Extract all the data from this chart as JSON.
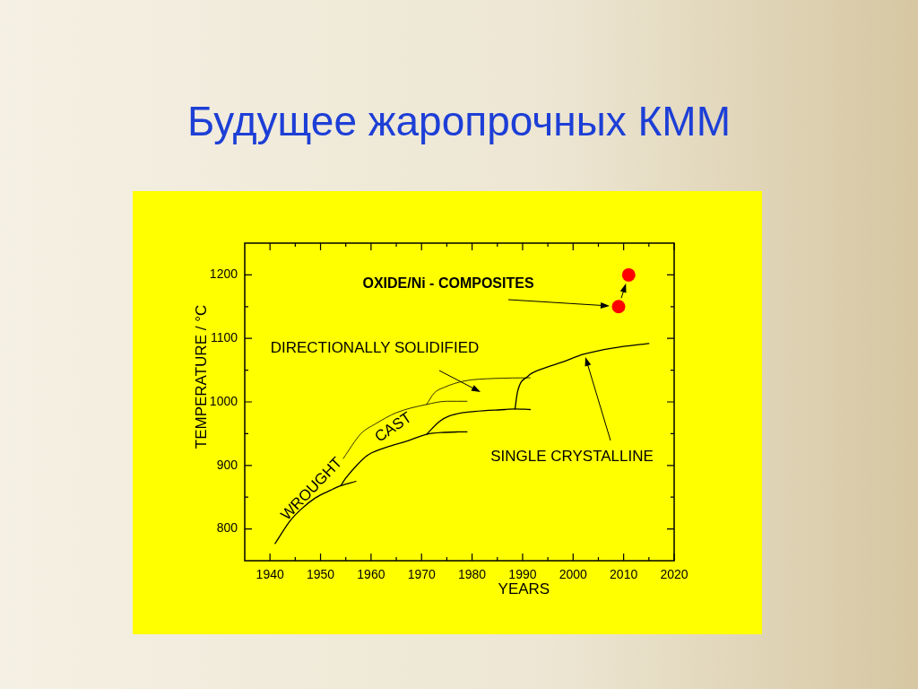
{
  "chart_data": {
    "type": "line",
    "title": "Будущее жаропрочных КММ",
    "xlabel": "YEARS",
    "ylabel": "TEMPERATURE / °C",
    "xlim": [
      1935,
      2020
    ],
    "xticks": [
      1940,
      {
        "value": 1945,
        "label": null
      },
      1950,
      {
        "value": 1955,
        "label": null
      },
      1960,
      {
        "value": 1965,
        "label": null
      },
      1970,
      {
        "value": 1975,
        "label": null
      },
      1980,
      {
        "value": 1985,
        "label": null
      },
      1990,
      {
        "value": 1995,
        "label": null
      },
      2000,
      {
        "value": 2005,
        "label": null
      },
      2010,
      {
        "value": 2015,
        "label": null
      },
      2020
    ],
    "ylim": [
      750,
      1250
    ],
    "yticks": [
      800,
      {
        "value": 850,
        "label": null
      },
      900,
      {
        "value": 950,
        "label": null
      },
      1000,
      {
        "value": 1050,
        "label": null
      },
      1100,
      {
        "value": 1150,
        "label": null
      },
      1200
    ],
    "marker": "none",
    "series": [
      {
        "name": "WROUGHT",
        "color": "#000000",
        "x": [
          1941,
          1944,
          1946,
          1949,
          1952,
          1954,
          1957
        ],
        "values": [
          777,
          813,
          830,
          849,
          861,
          868,
          875
        ]
      },
      {
        "name": "CAST",
        "color": "#000000",
        "x": [
          1954,
          1955,
          1957.5,
          1959.5,
          1964,
          1967,
          1971,
          1974.5,
          1979
        ],
        "values": [
          868,
          880,
          903,
          917,
          931,
          938,
          949,
          952,
          953
        ]
      },
      {
        "color": "#000000",
        "x": [
          1971,
          1973.5,
          1975.5,
          1980.5,
          1986.5,
          1988.5,
          1991.5
        ],
        "values": [
          949,
          969,
          978,
          985,
          988,
          989,
          988
        ]
      },
      {
        "color": "#000000",
        "x": [
          1954.5,
          1958,
          1961,
          1965,
          1971,
          1975,
          1979
        ],
        "values": [
          911,
          950,
          966,
          983,
          996,
          1001,
          1001
        ]
      },
      {
        "color": "#000000",
        "x": [
          1971,
          1972.5,
          1974.5,
          1978.5,
          1984.5,
          1991.5
        ],
        "values": [
          996,
          1014,
          1023,
          1033,
          1037,
          1038
        ]
      },
      {
        "color": "#000000",
        "x": [
          1988.5,
          1989,
          1991,
          1993.5,
          1998,
          2002,
          2008,
          2015
        ],
        "values": [
          989,
          1016,
          1040,
          1051,
          1063,
          1075,
          1085,
          1092
        ]
      },
      {
        "type": "scatter",
        "color": "#ff0000",
        "marker": "circle",
        "x": [
          2009,
          2011
        ],
        "values": [
          1150,
          1200
        ]
      }
    ],
    "annotations": [
      "OXIDE/Ni - COMPOSITES",
      "DIRECTIONALLY SOLIDIFIED",
      "SINGLE CRYSTALLINE"
    ]
  }
}
